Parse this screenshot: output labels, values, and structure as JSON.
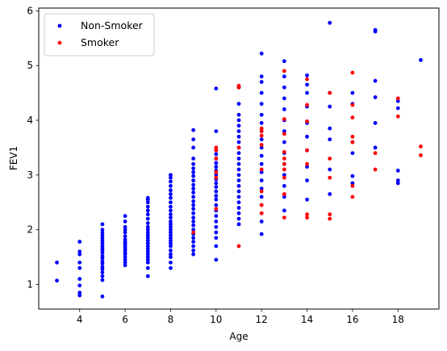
{
  "chart_data": {
    "type": "scatter",
    "title": "",
    "xlabel": "Age",
    "ylabel": "FEV1",
    "xlim": [
      2.2,
      19.8
    ],
    "ylim": [
      0.55,
      6.05
    ],
    "xticks": [
      4,
      6,
      8,
      10,
      12,
      14,
      16,
      18
    ],
    "yticks": [
      1,
      2,
      3,
      4,
      5,
      6
    ],
    "grid": false,
    "legend": "top-left",
    "series": [
      {
        "name": "Non-Smoker",
        "color": "#0000ff",
        "points": [
          [
            3,
            1.07
          ],
          [
            3,
            1.4
          ],
          [
            4,
            0.8
          ],
          [
            4,
            0.85
          ],
          [
            4,
            0.98
          ],
          [
            4,
            1.1
          ],
          [
            4,
            1.3
          ],
          [
            4,
            1.4
          ],
          [
            4,
            1.55
          ],
          [
            4,
            1.6
          ],
          [
            4,
            1.78
          ],
          [
            5,
            0.78
          ],
          [
            5,
            1.08
          ],
          [
            5,
            1.15
          ],
          [
            5,
            1.22
          ],
          [
            5,
            1.28
          ],
          [
            5,
            1.32
          ],
          [
            5,
            1.38
          ],
          [
            5,
            1.42
          ],
          [
            5,
            1.48
          ],
          [
            5,
            1.52
          ],
          [
            5,
            1.58
          ],
          [
            5,
            1.62
          ],
          [
            5,
            1.66
          ],
          [
            5,
            1.7
          ],
          [
            5,
            1.75
          ],
          [
            5,
            1.8
          ],
          [
            5,
            1.85
          ],
          [
            5,
            1.9
          ],
          [
            5,
            1.95
          ],
          [
            5,
            2.0
          ],
          [
            5,
            2.1
          ],
          [
            6,
            1.35
          ],
          [
            6,
            1.4
          ],
          [
            6,
            1.45
          ],
          [
            6,
            1.5
          ],
          [
            6,
            1.55
          ],
          [
            6,
            1.58
          ],
          [
            6,
            1.62
          ],
          [
            6,
            1.65
          ],
          [
            6,
            1.68
          ],
          [
            6,
            1.72
          ],
          [
            6,
            1.75
          ],
          [
            6,
            1.78
          ],
          [
            6,
            1.82
          ],
          [
            6,
            1.88
          ],
          [
            6,
            1.95
          ],
          [
            6,
            2.0
          ],
          [
            6,
            2.05
          ],
          [
            6,
            2.15
          ],
          [
            6,
            2.25
          ],
          [
            7,
            1.15
          ],
          [
            7,
            1.3
          ],
          [
            7,
            1.4
          ],
          [
            7,
            1.45
          ],
          [
            7,
            1.5
          ],
          [
            7,
            1.55
          ],
          [
            7,
            1.6
          ],
          [
            7,
            1.65
          ],
          [
            7,
            1.7
          ],
          [
            7,
            1.75
          ],
          [
            7,
            1.8
          ],
          [
            7,
            1.85
          ],
          [
            7,
            1.9
          ],
          [
            7,
            1.95
          ],
          [
            7,
            2.0
          ],
          [
            7,
            2.05
          ],
          [
            7,
            2.12
          ],
          [
            7,
            2.2
          ],
          [
            7,
            2.28
          ],
          [
            7,
            2.35
          ],
          [
            7,
            2.42
          ],
          [
            7,
            2.5
          ],
          [
            7,
            2.55
          ],
          [
            7,
            2.58
          ],
          [
            8,
            1.3
          ],
          [
            8,
            1.4
          ],
          [
            8,
            1.5
          ],
          [
            8,
            1.55
          ],
          [
            8,
            1.62
          ],
          [
            8,
            1.7
          ],
          [
            8,
            1.75
          ],
          [
            8,
            1.8
          ],
          [
            8,
            1.85
          ],
          [
            8,
            1.9
          ],
          [
            8,
            1.95
          ],
          [
            8,
            2.0
          ],
          [
            8,
            2.05
          ],
          [
            8,
            2.1
          ],
          [
            8,
            2.15
          ],
          [
            8,
            2.22
          ],
          [
            8,
            2.28
          ],
          [
            8,
            2.35
          ],
          [
            8,
            2.42
          ],
          [
            8,
            2.5
          ],
          [
            8,
            2.58
          ],
          [
            8,
            2.65
          ],
          [
            8,
            2.72
          ],
          [
            8,
            2.8
          ],
          [
            8,
            2.88
          ],
          [
            8,
            2.95
          ],
          [
            8,
            3.0
          ],
          [
            9,
            1.55
          ],
          [
            9,
            1.62
          ],
          [
            9,
            1.7
          ],
          [
            9,
            1.78
          ],
          [
            9,
            1.85
          ],
          [
            9,
            1.92
          ],
          [
            9,
            2.0
          ],
          [
            9,
            2.08
          ],
          [
            9,
            2.15
          ],
          [
            9,
            2.22
          ],
          [
            9,
            2.3
          ],
          [
            9,
            2.38
          ],
          [
            9,
            2.45
          ],
          [
            9,
            2.52
          ],
          [
            9,
            2.6
          ],
          [
            9,
            2.68
          ],
          [
            9,
            2.75
          ],
          [
            9,
            2.82
          ],
          [
            9,
            2.9
          ],
          [
            9,
            2.98
          ],
          [
            9,
            3.05
          ],
          [
            9,
            3.12
          ],
          [
            9,
            3.2
          ],
          [
            9,
            3.3
          ],
          [
            9,
            3.5
          ],
          [
            9,
            3.65
          ],
          [
            9,
            3.82
          ],
          [
            10,
            1.45
          ],
          [
            10,
            1.7
          ],
          [
            10,
            1.85
          ],
          [
            10,
            1.95
          ],
          [
            10,
            2.05
          ],
          [
            10,
            2.15
          ],
          [
            10,
            2.25
          ],
          [
            10,
            2.35
          ],
          [
            10,
            2.45
          ],
          [
            10,
            2.55
          ],
          [
            10,
            2.62
          ],
          [
            10,
            2.7
          ],
          [
            10,
            2.78
          ],
          [
            10,
            2.85
          ],
          [
            10,
            2.92
          ],
          [
            10,
            3.0
          ],
          [
            10,
            3.08
          ],
          [
            10,
            3.15
          ],
          [
            10,
            3.22
          ],
          [
            10,
            3.3
          ],
          [
            10,
            3.38
          ],
          [
            10,
            3.45
          ],
          [
            10,
            3.8
          ],
          [
            10,
            4.58
          ],
          [
            11,
            2.1
          ],
          [
            11,
            2.2
          ],
          [
            11,
            2.3
          ],
          [
            11,
            2.4
          ],
          [
            11,
            2.5
          ],
          [
            11,
            2.6
          ],
          [
            11,
            2.7
          ],
          [
            11,
            2.8
          ],
          [
            11,
            2.9
          ],
          [
            11,
            3.0
          ],
          [
            11,
            3.1
          ],
          [
            11,
            3.2
          ],
          [
            11,
            3.3
          ],
          [
            11,
            3.4
          ],
          [
            11,
            3.5
          ],
          [
            11,
            3.6
          ],
          [
            11,
            3.7
          ],
          [
            11,
            3.8
          ],
          [
            11,
            3.9
          ],
          [
            11,
            4.0
          ],
          [
            11,
            4.1
          ],
          [
            11,
            4.3
          ],
          [
            11,
            4.6
          ],
          [
            12,
            1.92
          ],
          [
            12,
            2.15
          ],
          [
            12,
            2.3
          ],
          [
            12,
            2.45
          ],
          [
            12,
            2.6
          ],
          [
            12,
            2.75
          ],
          [
            12,
            2.9
          ],
          [
            12,
            3.05
          ],
          [
            12,
            3.2
          ],
          [
            12,
            3.35
          ],
          [
            12,
            3.5
          ],
          [
            12,
            3.65
          ],
          [
            12,
            3.8
          ],
          [
            12,
            3.95
          ],
          [
            12,
            4.1
          ],
          [
            12,
            4.3
          ],
          [
            12,
            4.5
          ],
          [
            12,
            4.7
          ],
          [
            12,
            4.8
          ],
          [
            12,
            5.22
          ],
          [
            13,
            2.35
          ],
          [
            13,
            2.6
          ],
          [
            13,
            2.8
          ],
          [
            13,
            3.0
          ],
          [
            13,
            3.2
          ],
          [
            13,
            3.4
          ],
          [
            13,
            3.6
          ],
          [
            13,
            3.8
          ],
          [
            13,
            4.0
          ],
          [
            13,
            4.2
          ],
          [
            13,
            4.4
          ],
          [
            13,
            4.6
          ],
          [
            13,
            4.8
          ],
          [
            13,
            5.08
          ],
          [
            14,
            2.55
          ],
          [
            14,
            2.9
          ],
          [
            14,
            3.15
          ],
          [
            14,
            3.45
          ],
          [
            14,
            3.7
          ],
          [
            14,
            3.95
          ],
          [
            14,
            4.25
          ],
          [
            14,
            4.5
          ],
          [
            14,
            4.65
          ],
          [
            14,
            4.82
          ],
          [
            15,
            2.65
          ],
          [
            15,
            3.1
          ],
          [
            15,
            3.65
          ],
          [
            15,
            3.85
          ],
          [
            15,
            4.25
          ],
          [
            15,
            4.5
          ],
          [
            15,
            5.78
          ],
          [
            16,
            2.85
          ],
          [
            16,
            2.98
          ],
          [
            16,
            3.4
          ],
          [
            16,
            3.6
          ],
          [
            16,
            4.3
          ],
          [
            16,
            4.5
          ],
          [
            17,
            3.5
          ],
          [
            17,
            3.95
          ],
          [
            17,
            4.42
          ],
          [
            17,
            4.72
          ],
          [
            17,
            5.62
          ],
          [
            17,
            5.65
          ],
          [
            18,
            2.85
          ],
          [
            18,
            2.9
          ],
          [
            18,
            3.08
          ],
          [
            18,
            4.22
          ],
          [
            18,
            4.35
          ],
          [
            19,
            5.1
          ]
        ]
      },
      {
        "name": "Smoker",
        "color": "#ff0000",
        "points": [
          [
            9,
            1.95
          ],
          [
            10,
            2.38
          ],
          [
            10,
            2.95
          ],
          [
            10,
            3.05
          ],
          [
            10,
            3.3
          ],
          [
            10,
            3.45
          ],
          [
            10,
            3.5
          ],
          [
            11,
            1.7
          ],
          [
            11,
            3.5
          ],
          [
            11,
            4.6
          ],
          [
            11,
            4.63
          ],
          [
            12,
            2.3
          ],
          [
            12,
            2.45
          ],
          [
            12,
            2.7
          ],
          [
            12,
            3.1
          ],
          [
            12,
            3.55
          ],
          [
            12,
            3.72
          ],
          [
            12,
            3.8
          ],
          [
            12,
            3.85
          ],
          [
            13,
            2.22
          ],
          [
            13,
            2.65
          ],
          [
            13,
            2.95
          ],
          [
            13,
            3.1
          ],
          [
            13,
            3.2
          ],
          [
            13,
            3.3
          ],
          [
            13,
            3.42
          ],
          [
            13,
            3.75
          ],
          [
            13,
            4.02
          ],
          [
            13,
            4.9
          ],
          [
            14,
            2.22
          ],
          [
            14,
            2.28
          ],
          [
            14,
            3.2
          ],
          [
            14,
            3.45
          ],
          [
            14,
            3.98
          ],
          [
            14,
            4.28
          ],
          [
            14,
            4.75
          ],
          [
            15,
            2.2
          ],
          [
            15,
            2.28
          ],
          [
            15,
            2.95
          ],
          [
            15,
            3.3
          ],
          [
            15,
            4.5
          ],
          [
            16,
            2.6
          ],
          [
            16,
            2.8
          ],
          [
            16,
            3.6
          ],
          [
            16,
            3.7
          ],
          [
            16,
            4.05
          ],
          [
            16,
            4.28
          ],
          [
            16,
            4.87
          ],
          [
            17,
            3.1
          ],
          [
            17,
            3.4
          ],
          [
            18,
            4.07
          ],
          [
            18,
            4.4
          ],
          [
            19,
            3.36
          ],
          [
            19,
            3.52
          ]
        ]
      }
    ]
  }
}
